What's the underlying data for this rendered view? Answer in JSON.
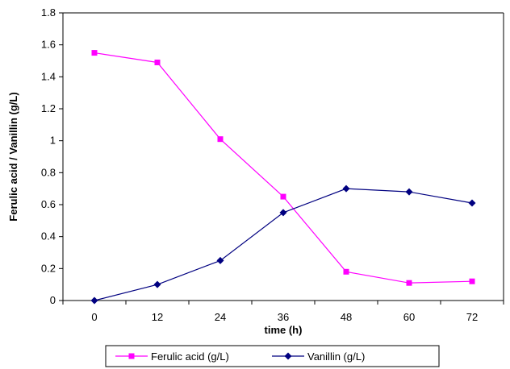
{
  "chart_data": {
    "type": "line",
    "title": "",
    "xlabel": "time (h)",
    "ylabel": "Ferulic acid / Vanillin (g/L)",
    "categories": [
      "0",
      "12",
      "24",
      "36",
      "48",
      "60",
      "72"
    ],
    "ylim": [
      0,
      1.8
    ],
    "yticks": [
      "0",
      "0.2",
      "0.4",
      "0.6",
      "0.8",
      "1",
      "1.2",
      "1.4",
      "1.6",
      "1.8"
    ],
    "grid": false,
    "legend_position": "bottom",
    "series": [
      {
        "name": "Ferulic acid (g/L)",
        "color": "#ff00ff",
        "marker": "square",
        "values": [
          1.55,
          1.49,
          1.01,
          0.65,
          0.18,
          0.11,
          0.12
        ]
      },
      {
        "name": "Vanillin (g/L)",
        "color": "#000080",
        "marker": "diamond",
        "values": [
          0.0,
          0.1,
          0.25,
          0.55,
          0.7,
          0.68,
          0.61
        ]
      }
    ]
  }
}
